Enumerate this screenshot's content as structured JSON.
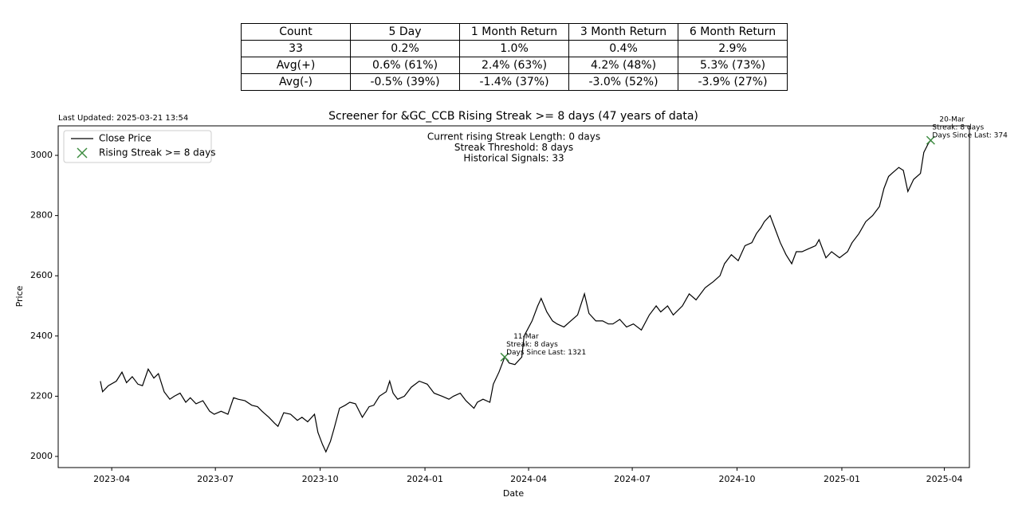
{
  "table": {
    "header": [
      "Count",
      "5 Day",
      "1 Month Return",
      "3 Month Return",
      "6 Month Return"
    ],
    "rows": [
      [
        "33",
        "0.2%",
        "1.0%",
        "0.4%",
        "2.9%"
      ],
      [
        "Avg(+)",
        "0.6% (61%)",
        "2.4% (63%)",
        "4.2% (48%)",
        "5.3% (73%)"
      ],
      [
        "Avg(-)",
        "-0.5% (39%)",
        "-1.4% (37%)",
        "-3.0% (52%)",
        "-3.9% (27%)"
      ]
    ]
  },
  "chart_data": {
    "type": "line",
    "title": "Screener for &GC_CCB Rising Streak >= 8 days (47 years of data)",
    "updated": "Last Updated: 2025-03-21 13:54",
    "info": [
      "Current rising Streak Length: 0 days",
      "Streak Threshold: 8 days",
      "Historical Signals: 33"
    ],
    "x_label": "Date",
    "y_label": "Price",
    "legend": "upper left",
    "xlim": [
      "2023-02-13",
      "2025-04-23"
    ],
    "xticks": [
      {
        "value": "2023-04-01",
        "label": "2023-04"
      },
      {
        "value": "2023-07-01",
        "label": "2023-07"
      },
      {
        "value": "2023-10-01",
        "label": "2023-10"
      },
      {
        "value": "2024-01-01",
        "label": "2024-01"
      },
      {
        "value": "2024-04-01",
        "label": "2024-04"
      },
      {
        "value": "2024-07-01",
        "label": "2024-07"
      },
      {
        "value": "2024-10-01",
        "label": "2024-10"
      },
      {
        "value": "2025-01-01",
        "label": "2025-01"
      },
      {
        "value": "2025-04-01",
        "label": "2025-04"
      }
    ],
    "ylim": [
      1963,
      3098
    ],
    "yticks": [
      2000,
      2200,
      2400,
      2600,
      2800,
      3000
    ],
    "series": [
      {
        "name": "Close Price",
        "color": "#000000",
        "x": [
          "2023-03-22",
          "2023-03-24",
          "2023-03-29",
          "2023-04-05",
          "2023-04-10",
          "2023-04-14",
          "2023-04-19",
          "2023-04-24",
          "2023-04-28",
          "2023-05-03",
          "2023-05-08",
          "2023-05-12",
          "2023-05-17",
          "2023-05-22",
          "2023-05-26",
          "2023-05-31",
          "2023-06-05",
          "2023-06-09",
          "2023-06-14",
          "2023-06-20",
          "2023-06-26",
          "2023-06-30",
          "2023-07-06",
          "2023-07-12",
          "2023-07-17",
          "2023-07-21",
          "2023-07-27",
          "2023-08-02",
          "2023-08-07",
          "2023-08-11",
          "2023-08-17",
          "2023-08-22",
          "2023-08-25",
          "2023-08-30",
          "2023-09-05",
          "2023-09-11",
          "2023-09-15",
          "2023-09-20",
          "2023-09-26",
          "2023-09-29",
          "2023-10-03",
          "2023-10-06",
          "2023-10-10",
          "2023-10-13",
          "2023-10-18",
          "2023-10-23",
          "2023-10-27",
          "2023-11-01",
          "2023-11-07",
          "2023-11-13",
          "2023-11-17",
          "2023-11-22",
          "2023-11-28",
          "2023-12-01",
          "2023-12-04",
          "2023-12-08",
          "2023-12-14",
          "2023-12-20",
          "2023-12-27",
          "2024-01-03",
          "2024-01-09",
          "2024-01-16",
          "2024-01-22",
          "2024-01-26",
          "2024-02-01",
          "2024-02-06",
          "2024-02-13",
          "2024-02-16",
          "2024-02-21",
          "2024-02-27",
          "2024-03-01",
          "2024-03-06",
          "2024-03-11",
          "2024-03-15",
          "2024-03-20",
          "2024-03-26",
          "2024-03-28",
          "2024-04-04",
          "2024-04-09",
          "2024-04-12",
          "2024-04-17",
          "2024-04-22",
          "2024-04-26",
          "2024-05-02",
          "2024-05-08",
          "2024-05-14",
          "2024-05-20",
          "2024-05-24",
          "2024-05-30",
          "2024-06-05",
          "2024-06-10",
          "2024-06-14",
          "2024-06-20",
          "2024-06-26",
          "2024-07-02",
          "2024-07-09",
          "2024-07-16",
          "2024-07-22",
          "2024-07-26",
          "2024-08-01",
          "2024-08-06",
          "2024-08-14",
          "2024-08-20",
          "2024-08-26",
          "2024-09-03",
          "2024-09-10",
          "2024-09-16",
          "2024-09-20",
          "2024-09-26",
          "2024-10-02",
          "2024-10-08",
          "2024-10-14",
          "2024-10-18",
          "2024-10-22",
          "2024-10-25",
          "2024-10-30",
          "2024-11-04",
          "2024-11-08",
          "2024-11-13",
          "2024-11-18",
          "2024-11-22",
          "2024-11-27",
          "2024-12-03",
          "2024-12-09",
          "2024-12-12",
          "2024-12-18",
          "2024-12-23",
          "2024-12-30",
          "2025-01-06",
          "2025-01-10",
          "2025-01-16",
          "2025-01-22",
          "2025-01-28",
          "2025-02-03",
          "2025-02-07",
          "2025-02-11",
          "2025-02-14",
          "2025-02-20",
          "2025-02-24",
          "2025-02-28",
          "2025-03-05",
          "2025-03-11",
          "2025-03-14",
          "2025-03-18",
          "2025-03-20",
          "2025-03-21"
        ],
        "values": [
          2250,
          2215,
          2235,
          2250,
          2280,
          2245,
          2265,
          2240,
          2235,
          2290,
          2260,
          2275,
          2215,
          2190,
          2200,
          2210,
          2180,
          2195,
          2175,
          2185,
          2150,
          2140,
          2150,
          2140,
          2195,
          2190,
          2185,
          2170,
          2165,
          2150,
          2130,
          2110,
          2100,
          2145,
          2140,
          2120,
          2130,
          2115,
          2140,
          2080,
          2040,
          2015,
          2050,
          2090,
          2160,
          2170,
          2180,
          2175,
          2130,
          2165,
          2170,
          2200,
          2215,
          2250,
          2210,
          2190,
          2200,
          2230,
          2250,
          2240,
          2210,
          2200,
          2190,
          2200,
          2210,
          2185,
          2160,
          2180,
          2190,
          2180,
          2240,
          2280,
          2330,
          2310,
          2305,
          2330,
          2400,
          2450,
          2500,
          2525,
          2480,
          2450,
          2440,
          2430,
          2450,
          2470,
          2540,
          2475,
          2450,
          2450,
          2440,
          2440,
          2455,
          2430,
          2440,
          2420,
          2470,
          2500,
          2480,
          2500,
          2470,
          2500,
          2540,
          2520,
          2560,
          2580,
          2600,
          2640,
          2670,
          2650,
          2700,
          2710,
          2740,
          2760,
          2780,
          2800,
          2750,
          2710,
          2670,
          2640,
          2680,
          2680,
          2690,
          2700,
          2720,
          2660,
          2680,
          2660,
          2680,
          2710,
          2740,
          2780,
          2800,
          2830,
          2890,
          2930,
          2940,
          2960,
          2950,
          2880,
          2920,
          2940,
          3010,
          3040,
          3050,
          3045
        ]
      },
      {
        "name": "Rising Streak >= 8 days",
        "color": "#3d8c40",
        "marker": "x",
        "x": [
          "2024-03-11",
          "2025-03-20"
        ],
        "values": [
          2330,
          3050
        ]
      }
    ],
    "annotations": [
      {
        "lines": [
          "11-Mar",
          "Streak: 8 days",
          "Days Since Last: 1321"
        ]
      },
      {
        "lines": [
          "20-Mar",
          "Streak: 8 days",
          "Days Since Last: 374"
        ]
      }
    ]
  }
}
